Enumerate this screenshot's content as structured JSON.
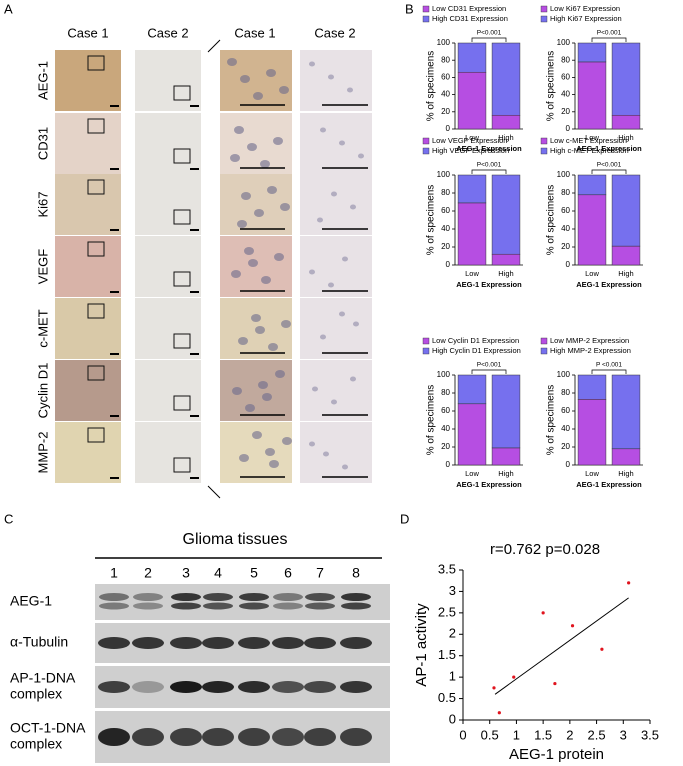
{
  "panel_a": {
    "label": "A",
    "columns": [
      "Case 1",
      "Case 2",
      "Case 1",
      "Case 2"
    ],
    "rows": [
      "AEG-1",
      "CD31",
      "Ki67",
      "VEGF",
      "c-MET",
      "Cyclin D1",
      "MMP-2"
    ]
  },
  "panel_b": {
    "label": "B"
  },
  "panel_c": {
    "label": "C",
    "title": "Glioma tissues",
    "lanes": [
      "1",
      "2",
      "3",
      "4",
      "5",
      "6",
      "7",
      "8"
    ],
    "rows": [
      [
        "AEG-1"
      ],
      [
        "α-Tubulin"
      ],
      [
        "AP-1-DNA",
        "complex"
      ],
      [
        "OCT-1-DNA",
        "complex"
      ]
    ]
  },
  "panel_d": {
    "label": "D"
  },
  "chart_data": [
    {
      "type": "bar",
      "stacked": true,
      "categories": [
        "Low",
        "High"
      ],
      "series": [
        {
          "name": "Low CD31 Expression",
          "color": "#b64ee2",
          "values": [
            66,
            16
          ]
        },
        {
          "name": "High CD31 Expression",
          "color": "#7670ee",
          "values": [
            34,
            84
          ]
        }
      ],
      "ylim": [
        0,
        100
      ],
      "yticks": [
        0,
        20,
        40,
        60,
        80,
        100
      ],
      "y_label": "% of specimens",
      "x_label": "AEG-1 Expression",
      "annotation": "P<0.001"
    },
    {
      "type": "bar",
      "stacked": true,
      "categories": [
        "Low",
        "High"
      ],
      "series": [
        {
          "name": "Low Ki67 Expression",
          "color": "#b64ee2",
          "values": [
            78,
            16
          ]
        },
        {
          "name": "High Ki67 Expression",
          "color": "#7670ee",
          "values": [
            22,
            84
          ]
        }
      ],
      "ylim": [
        0,
        100
      ],
      "yticks": [
        0,
        20,
        40,
        60,
        80,
        100
      ],
      "y_label": "% of specimens",
      "x_label": "AEG-1 Expression",
      "annotation": "P<0.001"
    },
    {
      "type": "bar",
      "stacked": true,
      "categories": [
        "Low",
        "High"
      ],
      "series": [
        {
          "name": "Low VEGF Expression",
          "color": "#b64ee2",
          "values": [
            69,
            12
          ]
        },
        {
          "name": "High VEGF Expression",
          "color": "#7670ee",
          "values": [
            31,
            88
          ]
        }
      ],
      "ylim": [
        0,
        100
      ],
      "yticks": [
        0,
        20,
        40,
        60,
        80,
        100
      ],
      "y_label": "% of specimens",
      "x_label": "AEG-1 Expression",
      "annotation": "P<0.001"
    },
    {
      "type": "bar",
      "stacked": true,
      "categories": [
        "Low",
        "High"
      ],
      "series": [
        {
          "name": "Low c-MET Expression",
          "color": "#b64ee2",
          "values": [
            78,
            21
          ]
        },
        {
          "name": "High c-MET Expression",
          "color": "#7670ee",
          "values": [
            22,
            79
          ]
        }
      ],
      "ylim": [
        0,
        100
      ],
      "yticks": [
        0,
        20,
        40,
        60,
        80,
        100
      ],
      "y_label": "% of specimens",
      "x_label": "AEG-1 Expression",
      "annotation": "P<0.001"
    },
    {
      "type": "bar",
      "stacked": true,
      "categories": [
        "Low",
        "High"
      ],
      "series": [
        {
          "name": "Low Cyclin D1 Expression",
          "color": "#b64ee2",
          "values": [
            68,
            19
          ]
        },
        {
          "name": "High Cyclin D1 Expression",
          "color": "#7670ee",
          "values": [
            32,
            81
          ]
        }
      ],
      "ylim": [
        0,
        100
      ],
      "yticks": [
        0,
        20,
        40,
        60,
        80,
        100
      ],
      "y_label": "% of specimens",
      "x_label": "AEG-1 Expression",
      "annotation": "P<0.001"
    },
    {
      "type": "bar",
      "stacked": true,
      "categories": [
        "Low",
        "High"
      ],
      "series": [
        {
          "name": "Low MMP-2 Expression",
          "color": "#b64ee2",
          "values": [
            73,
            18
          ]
        },
        {
          "name": "High MMP-2 Expression",
          "color": "#7670ee",
          "values": [
            27,
            82
          ]
        }
      ],
      "ylim": [
        0,
        100
      ],
      "yticks": [
        0,
        20,
        40,
        60,
        80,
        100
      ],
      "y_label": "% of specimens",
      "x_label": "AEG-1 Expression",
      "annotation": "P <0.001"
    },
    {
      "type": "scatter",
      "title": "r=0.762 p=0.028",
      "x": [
        0.58,
        0.68,
        0.95,
        1.5,
        1.72,
        2.05,
        2.6,
        3.1
      ],
      "values": [
        0.75,
        0.17,
        1.0,
        2.5,
        0.85,
        2.2,
        1.65,
        3.2
      ],
      "color": "#e0141e",
      "trend_line": {
        "x": [
          0.6,
          3.1
        ],
        "y": [
          0.6,
          2.85
        ]
      },
      "xlim": [
        0,
        3.5
      ],
      "xticks": [
        0,
        0.5,
        1,
        1.5,
        2,
        2.5,
        3,
        3.5
      ],
      "ylim": [
        0,
        3.5
      ],
      "yticks": [
        0,
        0.5,
        1,
        1.5,
        2,
        2.5,
        3,
        3.5
      ],
      "x_label": "AEG-1 protein",
      "y_label": "AP-1 activity"
    }
  ]
}
